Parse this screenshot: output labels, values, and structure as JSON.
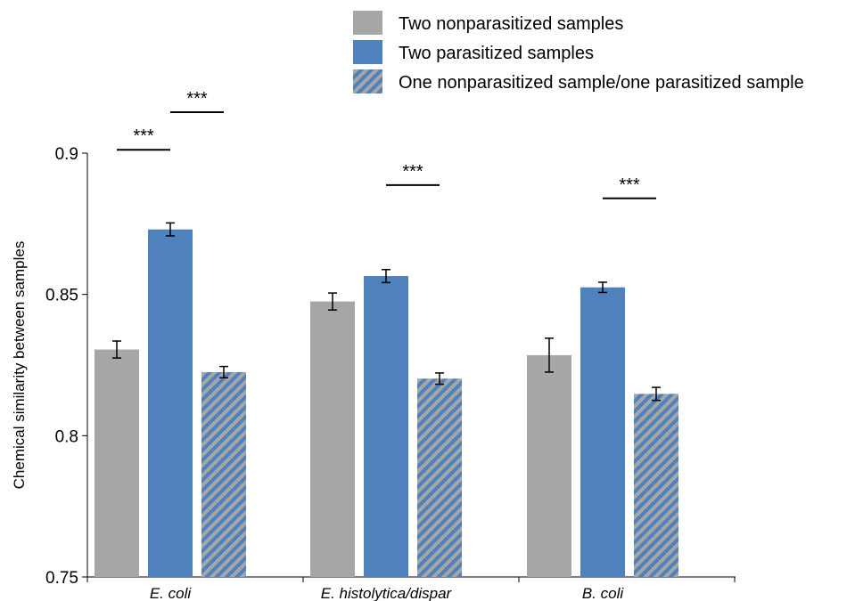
{
  "chart_data": {
    "type": "bar",
    "ylabel": "Chemical similarity between samples",
    "ylim": [
      0.75,
      0.9
    ],
    "yticks": [
      0.75,
      0.8,
      0.85,
      0.9
    ],
    "categories": [
      "E. coli",
      "E. histolytica/dispar",
      "B. coli"
    ],
    "series": [
      {
        "name": "Two nonparasitized samples",
        "color": "#A6A6A6",
        "pattern": "solid",
        "values": [
          0.8305,
          0.8475,
          0.8285
        ],
        "errors": [
          0.003,
          0.003,
          0.006
        ]
      },
      {
        "name": "Two parasitized samples",
        "color": "#4F81BD",
        "pattern": "solid",
        "values": [
          0.873,
          0.8565,
          0.8525
        ],
        "errors": [
          0.0023,
          0.0023,
          0.0018
        ]
      },
      {
        "name": "One nonparasitized sample/one parasitized sample",
        "color": "#4F81BD",
        "stripe_color": "#A6A6A6",
        "pattern": "diagonal-stripes",
        "values": [
          0.8225,
          0.8202,
          0.8148
        ],
        "errors": [
          0.002,
          0.002,
          0.0023
        ]
      }
    ],
    "significance": [
      {
        "group": 0,
        "from_series": 0,
        "to_series": 1,
        "level": 0.9012,
        "label": "***"
      },
      {
        "group": 0,
        "from_series": 1,
        "to_series": 2,
        "level": 0.9145,
        "label": "***"
      },
      {
        "group": 1,
        "from_series": 1,
        "to_series": 2,
        "level": 0.8887,
        "label": "***"
      },
      {
        "group": 2,
        "from_series": 1,
        "to_series": 2,
        "level": 0.884,
        "label": "***"
      }
    ],
    "legend_position": "top-right",
    "grid": false
  }
}
